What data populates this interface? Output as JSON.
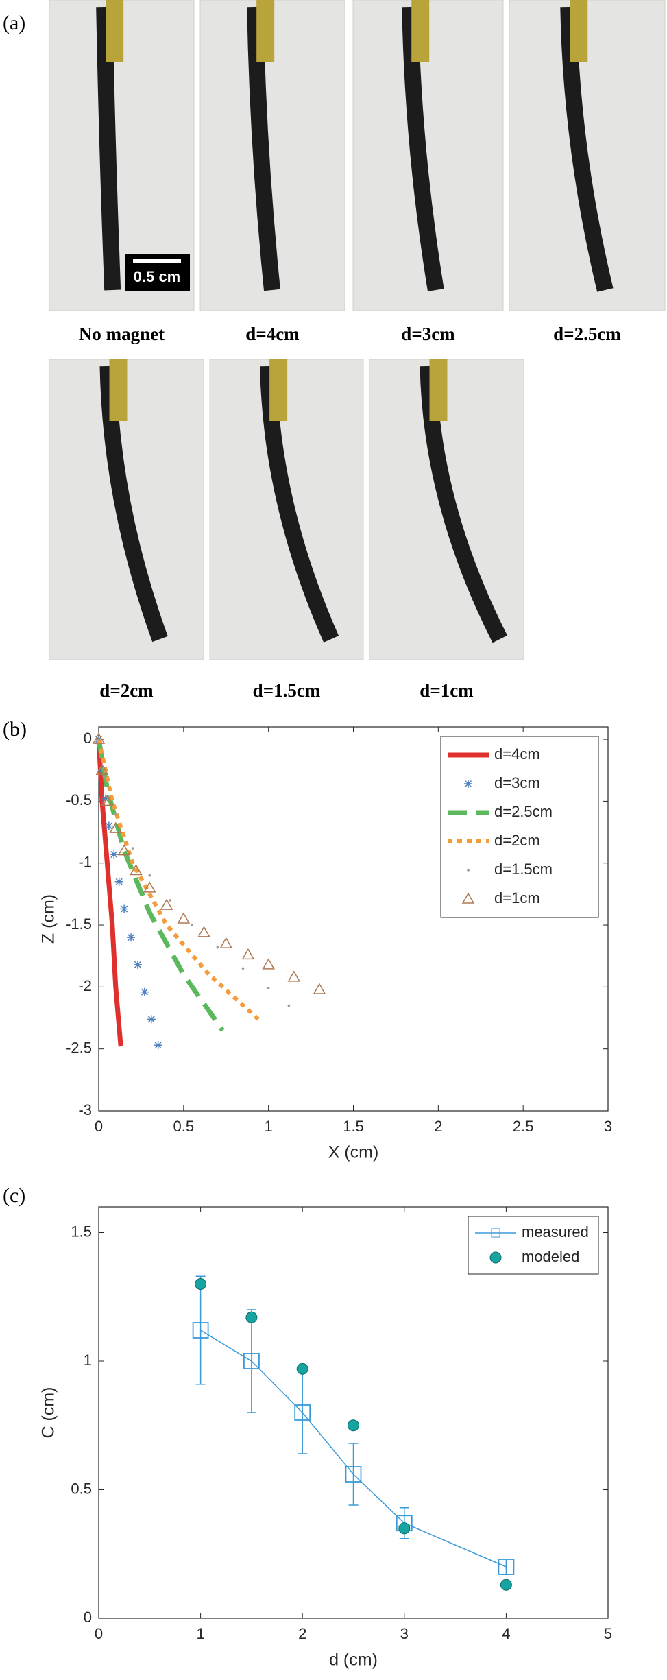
{
  "panels": {
    "a": "(a)",
    "b": "(b)",
    "c": "(c)"
  },
  "photos": {
    "captions": [
      "No magnet",
      "d=4cm",
      "d=3cm",
      "d=2.5cm",
      "d=2cm",
      "d=1.5cm",
      "d=1cm"
    ],
    "scale_bar": "0.5 cm"
  },
  "chart_data": [
    {
      "type": "line",
      "x_label": "X (cm)",
      "y_label": "Z (cm)",
      "xlim": [
        0,
        3
      ],
      "xticks": [
        0,
        0.5,
        1,
        1.5,
        2,
        2.5,
        3
      ],
      "ylim": [
        -3,
        0.1
      ],
      "yticks": [
        -3,
        -2.5,
        -2,
        -1.5,
        -1,
        -0.5,
        0
      ],
      "legend": "top-right",
      "series": [
        {
          "name": "d=4cm",
          "color": "#e0302e",
          "style": "solid",
          "marker": "none",
          "x": [
            0,
            0.02,
            0.05,
            0.08,
            0.1,
            0.13
          ],
          "values": [
            0,
            -0.5,
            -1,
            -1.5,
            -2,
            -2.48
          ]
        },
        {
          "name": "d=3cm",
          "color": "#4f7fbf",
          "style": "none",
          "marker": "star",
          "x": [
            0,
            0.02,
            0.04,
            0.06,
            0.09,
            0.12,
            0.15,
            0.19,
            0.23,
            0.27,
            0.31,
            0.35
          ],
          "values": [
            0,
            -0.25,
            -0.48,
            -0.7,
            -0.93,
            -1.15,
            -1.37,
            -1.6,
            -1.82,
            -2.04,
            -2.26,
            -2.47
          ]
        },
        {
          "name": "d=2.5cm",
          "color": "#5cb85c",
          "style": "dashed",
          "marker": "none",
          "x": [
            0,
            0.05,
            0.15,
            0.3,
            0.5,
            0.73
          ],
          "values": [
            0,
            -0.4,
            -0.9,
            -1.4,
            -1.9,
            -2.35
          ]
        },
        {
          "name": "d=2cm",
          "color": "#f39c3c",
          "style": "dotted",
          "marker": "none",
          "x": [
            0,
            0.08,
            0.2,
            0.4,
            0.65,
            0.94
          ],
          "values": [
            0,
            -0.5,
            -1,
            -1.5,
            -1.9,
            -2.26
          ]
        },
        {
          "name": "d=1.5cm",
          "color": "#999999",
          "style": "none",
          "marker": "dot",
          "x": [
            0,
            0.03,
            0.1,
            0.2,
            0.3,
            0.42,
            0.55,
            0.7,
            0.85,
            1,
            1.12
          ],
          "values": [
            0,
            -0.3,
            -0.6,
            -0.88,
            -1.1,
            -1.3,
            -1.5,
            -1.68,
            -1.85,
            -2.01,
            -2.15
          ]
        },
        {
          "name": "d=1cm",
          "color": "#b07850",
          "style": "none",
          "marker": "triangle",
          "x": [
            0,
            0.02,
            0.05,
            0.1,
            0.15,
            0.22,
            0.3,
            0.4,
            0.5,
            0.62,
            0.75,
            0.88,
            1,
            1.15,
            1.3
          ],
          "values": [
            0,
            -0.25,
            -0.5,
            -0.72,
            -0.9,
            -1.06,
            -1.2,
            -1.34,
            -1.45,
            -1.56,
            -1.65,
            -1.74,
            -1.82,
            -1.92,
            -2.02
          ]
        }
      ]
    },
    {
      "type": "errorbar",
      "x_label": "d (cm)",
      "y_label": "C (cm)",
      "xlim": [
        0,
        5
      ],
      "xticks": [
        0,
        1,
        2,
        3,
        4,
        5
      ],
      "ylim": [
        0,
        1.6
      ],
      "yticks": [
        0,
        0.5,
        1,
        1.5
      ],
      "legend": "top-right",
      "series": [
        {
          "name": "measured",
          "color": "#3a9ad9",
          "marker": "square",
          "x": [
            1,
            1.5,
            2,
            2.5,
            3,
            4
          ],
          "values": [
            1.12,
            1.0,
            0.8,
            0.56,
            0.37,
            0.2
          ],
          "errors": [
            0.21,
            0.2,
            0.16,
            0.12,
            0.06,
            0.03
          ]
        },
        {
          "name": "modeled",
          "color": "#17a3a0",
          "marker": "circle",
          "x": [
            1,
            1.5,
            2,
            2.5,
            3,
            4
          ],
          "values": [
            1.3,
            1.17,
            0.97,
            0.75,
            0.35,
            0.13
          ]
        }
      ]
    }
  ]
}
